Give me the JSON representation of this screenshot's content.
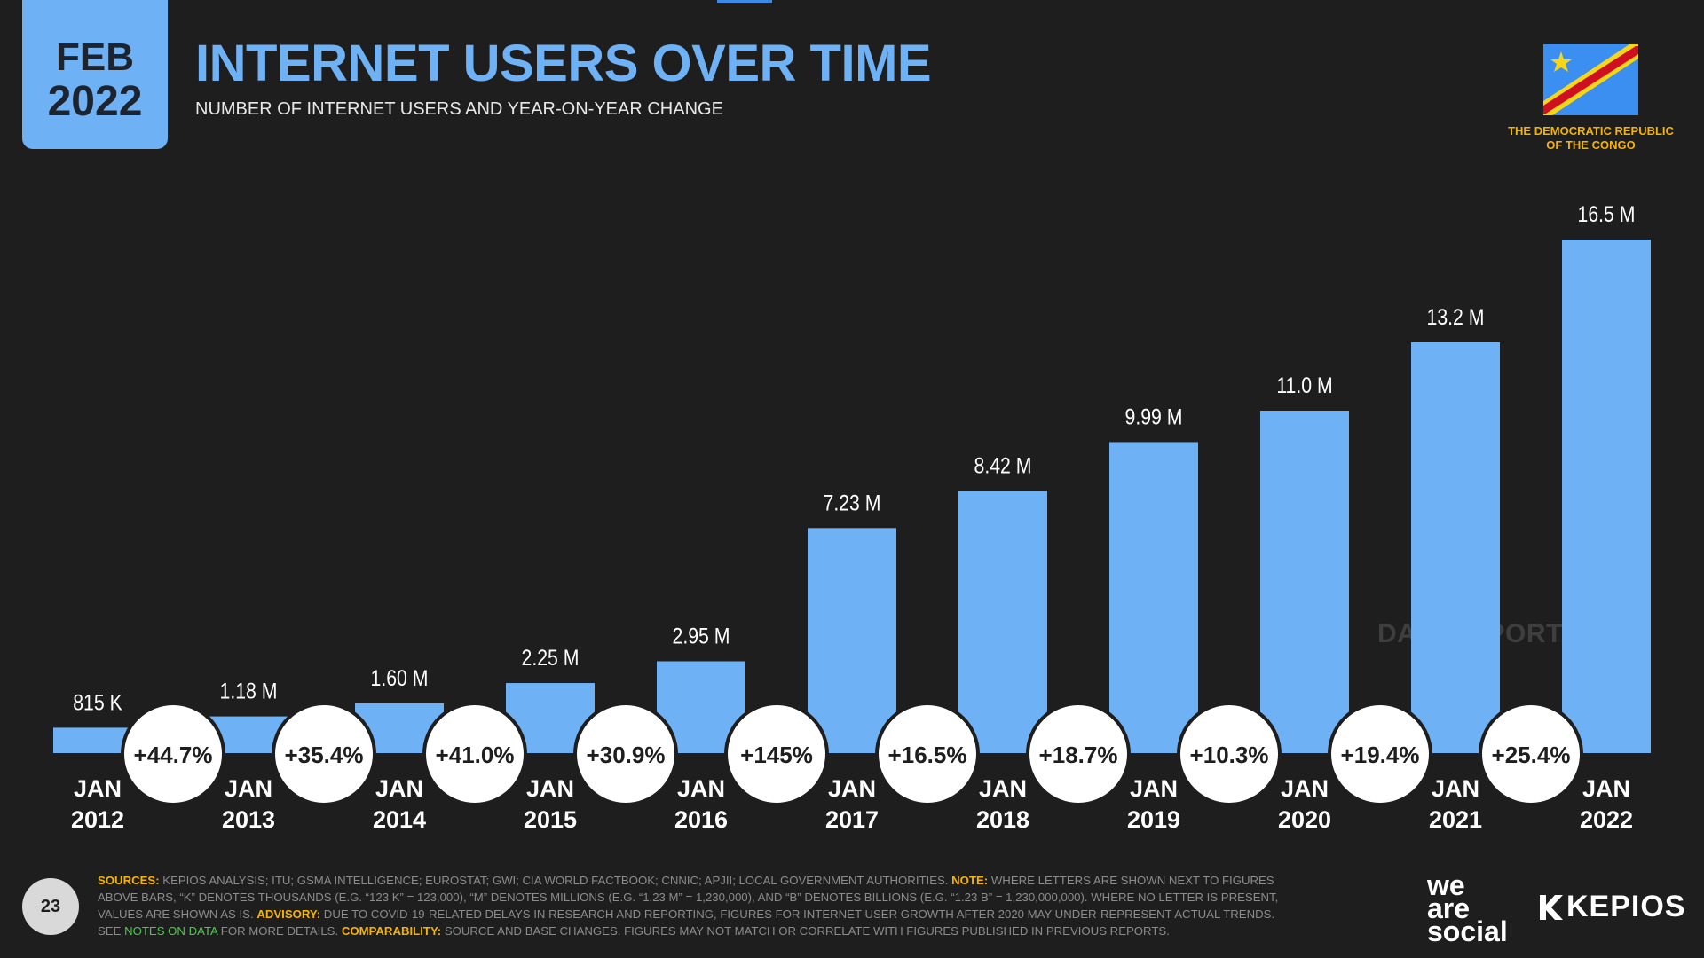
{
  "header": {
    "month": "FEB",
    "year": "2022",
    "title": "INTERNET USERS OVER TIME",
    "subtitle": "NUMBER OF INTERNET USERS AND YEAR-ON-YEAR CHANGE"
  },
  "country": "THE DEMOCRATIC REPUBLIC OF THE CONGO",
  "watermark": "DATAREPORTAL",
  "page_number": "23",
  "footnote": {
    "sources_label": "SOURCES:",
    "sources": "KEPIOS ANALYSIS; ITU; GSMA INTELLIGENCE; EUROSTAT; GWI; CIA WORLD FACTBOOK; CNNIC; APJII; LOCAL GOVERNMENT AUTHORITIES.",
    "note_label": "NOTE:",
    "note": "WHERE LETTERS ARE SHOWN NEXT TO FIGURES ABOVE BARS, “K” DENOTES THOUSANDS (E.G. “123 K” = 123,000), “M” DENOTES MILLIONS (E.G. “1.23 M” = 1,230,000), AND “B” DENOTES BILLIONS (E.G. “1.23 B” = 1,230,000,000). WHERE NO LETTER IS PRESENT, VALUES ARE SHOWN AS IS.",
    "advisory_label": "ADVISORY:",
    "advisory": "DUE TO COVID-19-RELATED DELAYS IN RESEARCH AND REPORTING, FIGURES FOR INTERNET USER GROWTH AFTER 2020 MAY UNDER-REPRESENT ACTUAL TRENDS. SEE",
    "notes_link": "NOTES ON DATA",
    "advisory_end": "FOR MORE DETAILS.",
    "comparability_label": "COMPARABILITY:",
    "comparability": "SOURCE AND BASE CHANGES. FIGURES MAY NOT MATCH OR CORRELATE WITH FIGURES PUBLISHED IN PREVIOUS REPORTS."
  },
  "brands": {
    "was": [
      "we",
      "are",
      "social"
    ],
    "kepios": "KEPIOS"
  },
  "colors": {
    "bar": "#6fb1f5",
    "accent": "#6fb1f5",
    "highlight": "#f5b400",
    "background": "#1e1e1e"
  },
  "chart_data": {
    "type": "bar",
    "title": "INTERNET USERS OVER TIME",
    "subtitle": "NUMBER OF INTERNET USERS AND YEAR-ON-YEAR CHANGE",
    "categories": [
      [
        "JAN",
        "2012"
      ],
      [
        "JAN",
        "2013"
      ],
      [
        "JAN",
        "2014"
      ],
      [
        "JAN",
        "2015"
      ],
      [
        "JAN",
        "2016"
      ],
      [
        "JAN",
        "2017"
      ],
      [
        "JAN",
        "2018"
      ],
      [
        "JAN",
        "2019"
      ],
      [
        "JAN",
        "2020"
      ],
      [
        "JAN",
        "2021"
      ],
      [
        "JAN",
        "2022"
      ]
    ],
    "values": [
      0.815,
      1.18,
      1.6,
      2.25,
      2.95,
      7.23,
      8.42,
      9.99,
      11.0,
      13.2,
      16.5
    ],
    "value_unit": "millions",
    "value_labels": [
      "815 K",
      "1.18 M",
      "1.60 M",
      "2.25 M",
      "2.95 M",
      "7.23 M",
      "8.42 M",
      "9.99 M",
      "11.0 M",
      "13.2 M",
      "16.5 M"
    ],
    "yoy_change": [
      "+44.7%",
      "+35.4%",
      "+41.0%",
      "+30.9%",
      "+145%",
      "+16.5%",
      "+18.7%",
      "+10.3%",
      "+19.4%",
      "+25.4%"
    ],
    "ylim": [
      0,
      16.5
    ],
    "grid": false,
    "legend": "none"
  }
}
